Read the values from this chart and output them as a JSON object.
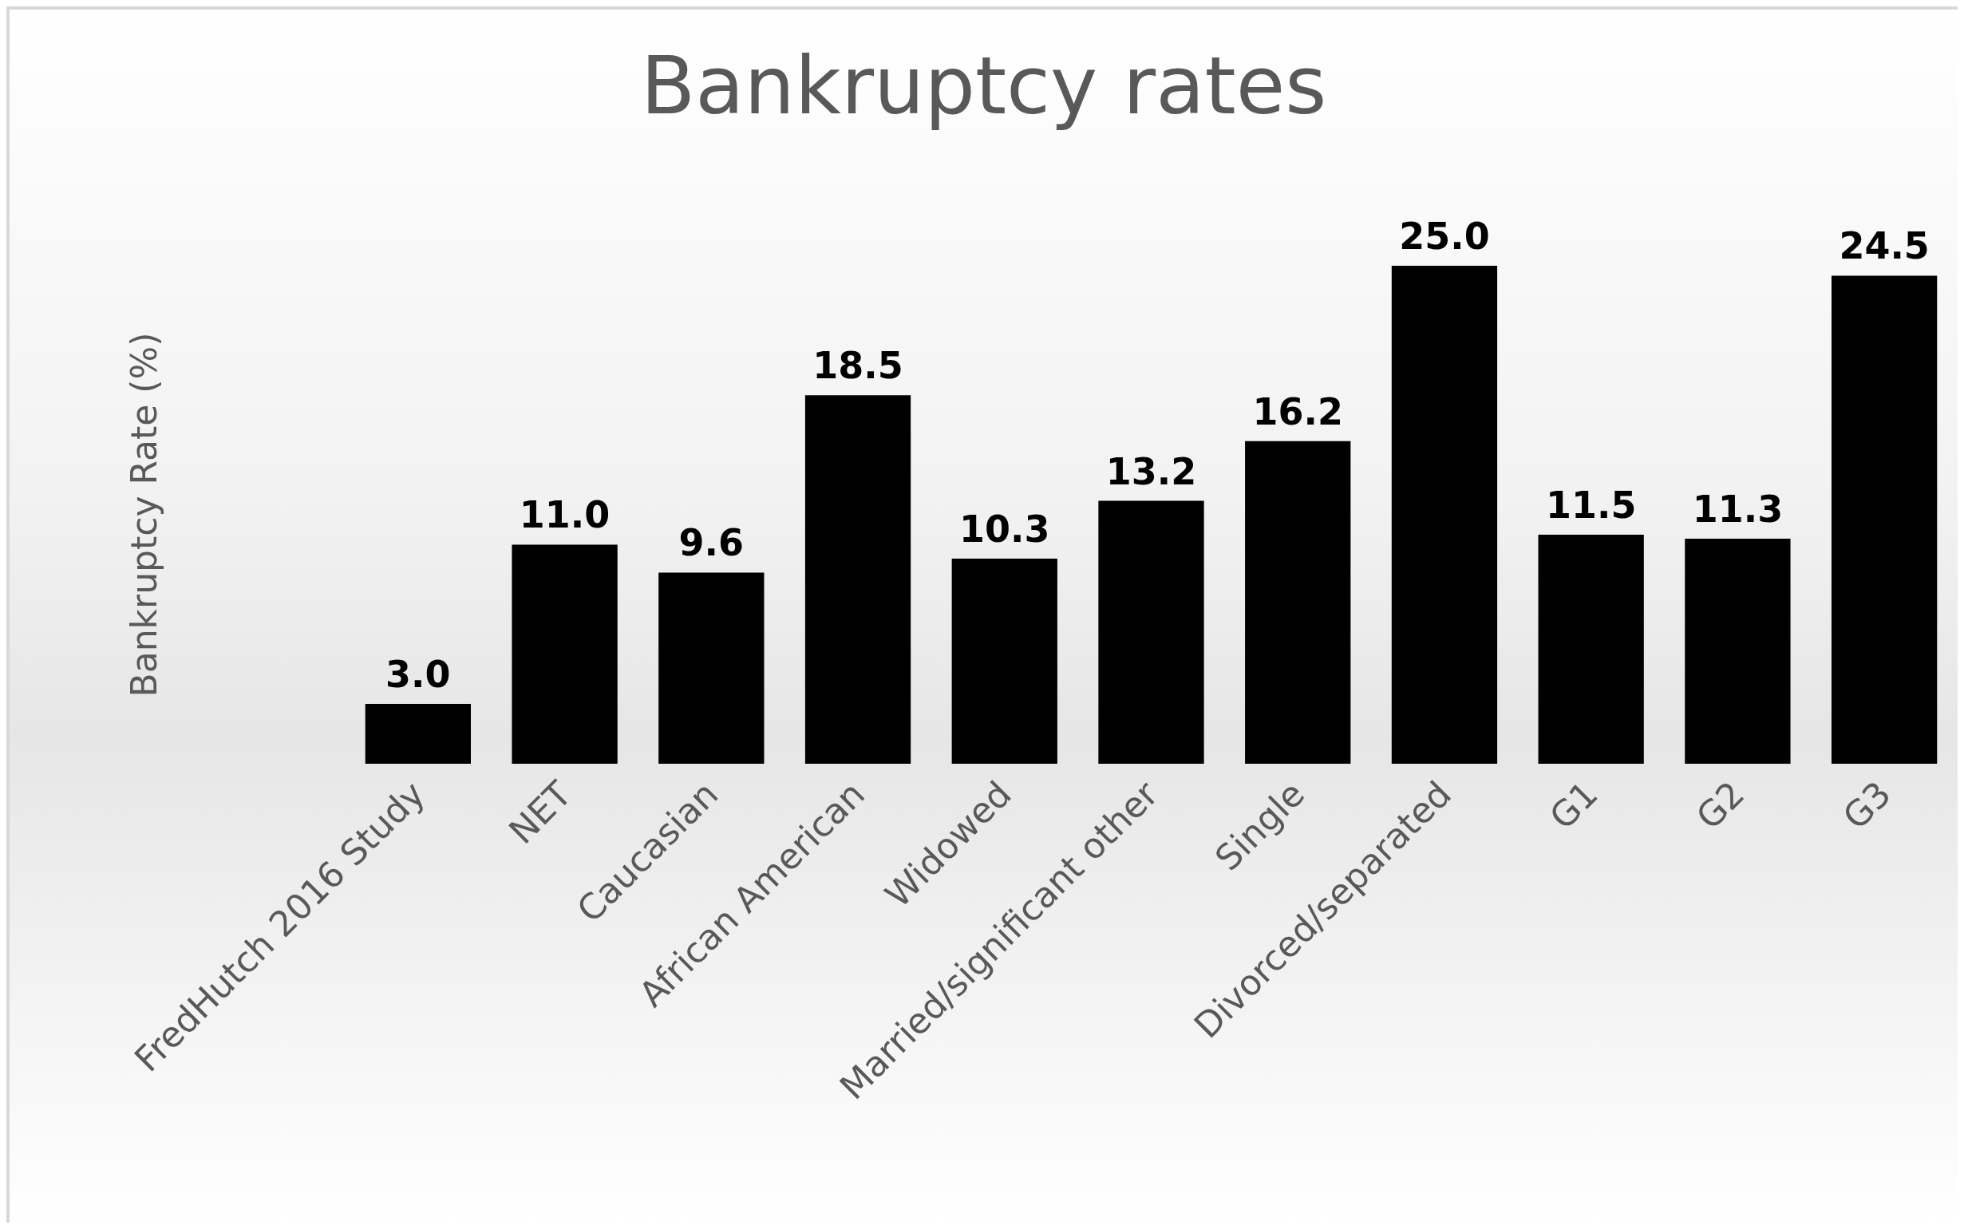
{
  "chart_data": {
    "type": "bar",
    "title": "Bankruptcy rates",
    "ylabel": "Bankruptcy Rate (%)",
    "categories": [
      "FredHutch 2016 Study",
      "NET",
      "Caucasian",
      "African American",
      "Widowed",
      "Married/significant other",
      "Single",
      "Divorced/separated",
      "G1",
      "G2",
      "G3"
    ],
    "values": [
      3.0,
      11.0,
      9.6,
      18.5,
      10.3,
      13.2,
      16.2,
      25.0,
      11.5,
      11.3,
      24.5
    ],
    "value_labels": [
      "3.0",
      "11.0",
      "9.6",
      "18.5",
      "10.3",
      "13.2",
      "16.2",
      "25.0",
      "11.5",
      "11.3",
      "24.5"
    ],
    "color": "#000000",
    "grid": false,
    "tick_labels": "x"
  }
}
